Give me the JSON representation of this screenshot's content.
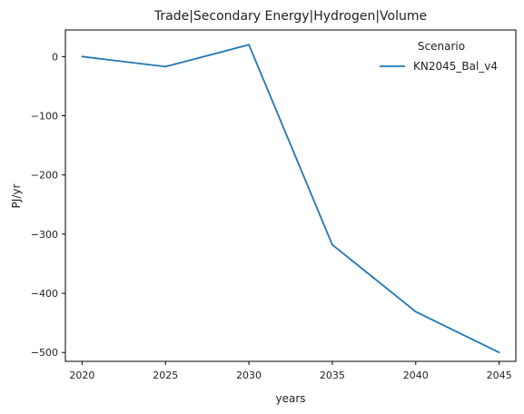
{
  "chart_data": {
    "type": "line",
    "title": "Trade|Secondary Energy|Hydrogen|Volume",
    "xlabel": "years",
    "ylabel": "PJ/yr",
    "x": [
      2020,
      2025,
      2030,
      2035,
      2040,
      2045
    ],
    "xticks": [
      2020,
      2025,
      2030,
      2035,
      2040,
      2045
    ],
    "yticks": [
      0,
      -100,
      -200,
      -300,
      -400,
      -500
    ],
    "xlim": [
      2019,
      2046
    ],
    "ylim": [
      -515,
      45
    ],
    "grid": false,
    "legend": {
      "title": "Scenario",
      "placement": "top-right"
    },
    "series": [
      {
        "name": "KN2045_Bal_v4",
        "color": "#1f77b4",
        "values": [
          0,
          -17,
          20,
          -318,
          -431,
          -500
        ]
      }
    ]
  }
}
